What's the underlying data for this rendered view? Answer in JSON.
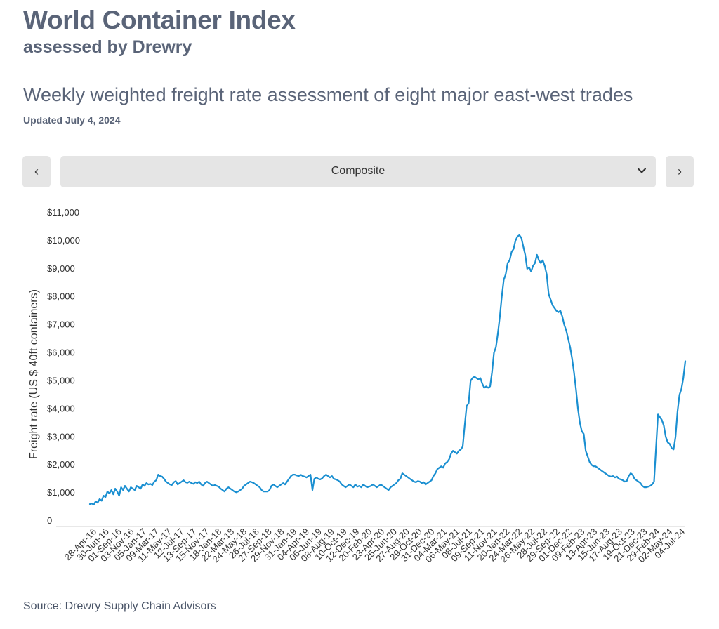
{
  "header": {
    "title": "World Container Index",
    "subtitle": "assessed by Drewry",
    "heading": "Weekly weighted freight rate assessment of eight major east-west trades",
    "updated": "Updated July 4, 2024"
  },
  "controls": {
    "prev_label": "‹",
    "next_label": "›",
    "selected": "Composite"
  },
  "source": "Source: Drewry Supply Chain Advisors",
  "chart_data": {
    "type": "line",
    "title": "",
    "xlabel": "",
    "ylabel": "Freight rate (US $ 40ft containers)",
    "ylim": [
      0,
      11000
    ],
    "yticks": [
      0,
      1000,
      2000,
      3000,
      4000,
      5000,
      6000,
      7000,
      8000,
      9000,
      10000,
      11000
    ],
    "ytick_labels": [
      "0",
      "$1,000",
      "$2,000",
      "$3,000",
      "$4,000",
      "$5,000",
      "$6,000",
      "$7,000",
      "$8,000",
      "$9,000",
      "$10,000",
      "$11,000"
    ],
    "xtick_labels": [
      "28-Apr-16",
      "30-Jun-16",
      "01-Sep-16",
      "03-Nov-16",
      "05-Jan-17",
      "09-Mar-17",
      "11-May-17",
      "12-Jul-17",
      "13-Sep-17",
      "15-Nov-17",
      "18-Jan-18",
      "22-Mar-18",
      "24-May-18",
      "26-Jul-18",
      "27-Sep-18",
      "29-Nov-18",
      "31-Jan-19",
      "04-Apr-19",
      "06-Jun-19",
      "08-Aug-19",
      "10-Oct-19",
      "12-Dec-19",
      "20-Feb-20",
      "23-Apr-20",
      "25-Jun-20",
      "27-Aug-20",
      "29-Oct-20",
      "31-Dec-20",
      "04-Mar-21",
      "06-May-21",
      "08-Jul-21",
      "09-Sep-21",
      "11-Nov-21",
      "20-Jan-22",
      "24-Mar-22",
      "26-May-22",
      "28-Jul-22",
      "29-Sep-22",
      "01-Dec-22",
      "09-Feb-23",
      "13-Apr-23",
      "15-Jun-23",
      "17-Aug-23",
      "19-Oct-23",
      "21-Dec-23",
      "29-Feb-24",
      "02-May-24",
      "04-Jul-24"
    ],
    "grid": false,
    "legend": "none",
    "color": "#1a8fd1",
    "series": [
      {
        "values": [
          600,
          620,
          580,
          700,
          650,
          780,
          720,
          900,
          850,
          1050,
          980,
          1100,
          950,
          1150,
          1050,
          900,
          1200,
          1100,
          1250,
          1150,
          1050,
          1200,
          1150,
          1100,
          1250,
          1200,
          1150,
          1300,
          1250,
          1350,
          1300,
          1320,
          1280,
          1400,
          1450,
          1650,
          1600,
          1580,
          1500,
          1400,
          1350,
          1300,
          1280,
          1380,
          1420,
          1300,
          1350,
          1400,
          1450,
          1380,
          1360,
          1400,
          1350,
          1320,
          1380,
          1350,
          1400,
          1300,
          1250,
          1350,
          1400,
          1350,
          1300,
          1250,
          1280,
          1250,
          1220,
          1150,
          1100,
          1050,
          1150,
          1200,
          1150,
          1100,
          1050,
          1020,
          1050,
          1100,
          1150,
          1250,
          1300,
          1350,
          1400,
          1380,
          1350,
          1300,
          1250,
          1200,
          1100,
          1050,
          1050,
          1050,
          1100,
          1250,
          1300,
          1250,
          1200,
          1250,
          1300,
          1350,
          1300,
          1400,
          1500,
          1600,
          1650,
          1650,
          1620,
          1600,
          1650,
          1600,
          1580,
          1550,
          1600,
          1650,
          1100,
          1500,
          1550,
          1500,
          1480,
          1520,
          1600,
          1650,
          1600,
          1550,
          1600,
          1500,
          1480,
          1450,
          1400,
          1300,
          1250,
          1200,
          1250,
          1300,
          1250,
          1200,
          1300,
          1220,
          1250,
          1200,
          1300,
          1250,
          1200,
          1220,
          1250,
          1300,
          1250,
          1200,
          1250,
          1300,
          1250,
          1200,
          1150,
          1100,
          1200,
          1250,
          1300,
          1350,
          1450,
          1500,
          1700,
          1650,
          1600,
          1550,
          1500,
          1450,
          1400,
          1380,
          1420,
          1400,
          1350,
          1380,
          1300,
          1350,
          1400,
          1450,
          1600,
          1700,
          1850,
          1900,
          1950,
          1900,
          2050,
          2100,
          2200,
          2400,
          2500,
          2450,
          2400,
          2500,
          2550,
          2650,
          3400,
          4100,
          4200,
          5000,
          5100,
          5150,
          5100,
          5050,
          5100,
          4900,
          4750,
          4800,
          4750,
          4800,
          5300,
          6000,
          6200,
          6700,
          7300,
          8000,
          8600,
          8800,
          9200,
          9300,
          9600,
          9700,
          10000,
          10150,
          10200,
          10100,
          9800,
          9500,
          9000,
          9050,
          8900,
          9100,
          9200,
          9500,
          9300,
          9200,
          9300,
          9100,
          8800,
          8100,
          7900,
          7700,
          7600,
          7500,
          7450,
          7500,
          7300,
          7000,
          6800,
          6500,
          6200,
          5800,
          5300,
          4700,
          4000,
          3500,
          3200,
          3100,
          2500,
          2300,
          2100,
          2000,
          1950,
          1950,
          1900,
          1850,
          1800,
          1750,
          1700,
          1650,
          1600,
          1580,
          1600,
          1550,
          1580,
          1500,
          1480,
          1450,
          1400,
          1420,
          1600,
          1700,
          1650,
          1500,
          1450,
          1400,
          1350,
          1250,
          1200,
          1200,
          1220,
          1250,
          1300,
          1400,
          2600,
          3800,
          3700,
          3600,
          3400,
          3000,
          2800,
          2750,
          2600,
          2550,
          3000,
          3900,
          4500,
          4700,
          5100,
          5700
        ]
      }
    ]
  }
}
